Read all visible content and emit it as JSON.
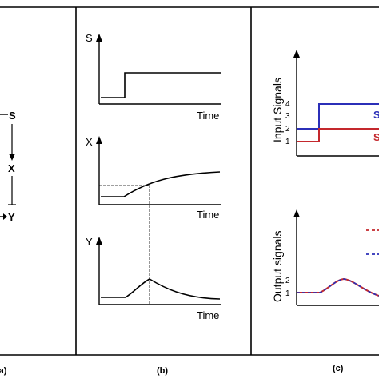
{
  "panel_a": {
    "nodes": {
      "s": "S",
      "x": "X",
      "y": "Y"
    },
    "caption": "(a)"
  },
  "panel_b": {
    "plots": [
      {
        "ylabel": "S",
        "xlabel": "Time"
      },
      {
        "ylabel": "X",
        "xlabel": "Time"
      },
      {
        "ylabel": "Y",
        "xlabel": "Time"
      }
    ],
    "caption": "(b)"
  },
  "panel_c": {
    "top_ylabel": "Input Signals",
    "top_ticks": [
      "4",
      "3",
      "2",
      "1"
    ],
    "top_series_labels": [
      "S",
      "S"
    ],
    "bottom_ylabel": "Output signals",
    "bottom_ticks": [
      "2",
      "1"
    ],
    "caption": "(c)"
  },
  "colors": {
    "blue": "#2b2fb8",
    "red": "#c4282d",
    "line": "#000000"
  }
}
